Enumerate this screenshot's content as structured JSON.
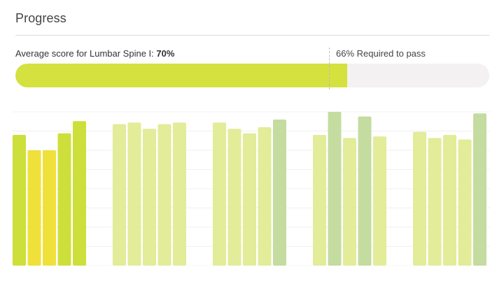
{
  "header": {
    "title": "Progress"
  },
  "progress": {
    "average_label": "Average score for Lumbar Spine I:",
    "average_value": "70%",
    "average_fraction": 0.7,
    "required_label": "66% Required to pass",
    "required_fraction": 0.66,
    "colors": {
      "fill": "#d4e13f",
      "track": "#f3f1f2"
    }
  },
  "chart_data": {
    "type": "bar",
    "ylim": [
      0,
      100
    ],
    "grid": true,
    "groups": [
      {
        "values": [
          85,
          75,
          75,
          86,
          94
        ],
        "colors": [
          "#cddf3a",
          "#f0e03a",
          "#f0e03a",
          "#cddf3a",
          "#cddf3a"
        ]
      },
      {
        "values": [
          92,
          93,
          89,
          92,
          93
        ],
        "colors": [
          "#e2ec99",
          "#e2ec99",
          "#e2ec99",
          "#e2ec99",
          "#e2ec99"
        ]
      },
      {
        "values": [
          93,
          89,
          86,
          90,
          95
        ],
        "colors": [
          "#e2ec99",
          "#e2ec99",
          "#e2ec99",
          "#e2ec99",
          "#c4dca0"
        ]
      },
      {
        "values": [
          85,
          100,
          83,
          97,
          84
        ],
        "colors": [
          "#e2ec99",
          "#c4dca0",
          "#e2ec99",
          "#c4dca0",
          "#e2ec99"
        ]
      },
      {
        "values": [
          87,
          83,
          85,
          82,
          99
        ],
        "colors": [
          "#e2ec99",
          "#e2ec99",
          "#e2ec99",
          "#e2ec99",
          "#c4dca0"
        ]
      }
    ]
  }
}
